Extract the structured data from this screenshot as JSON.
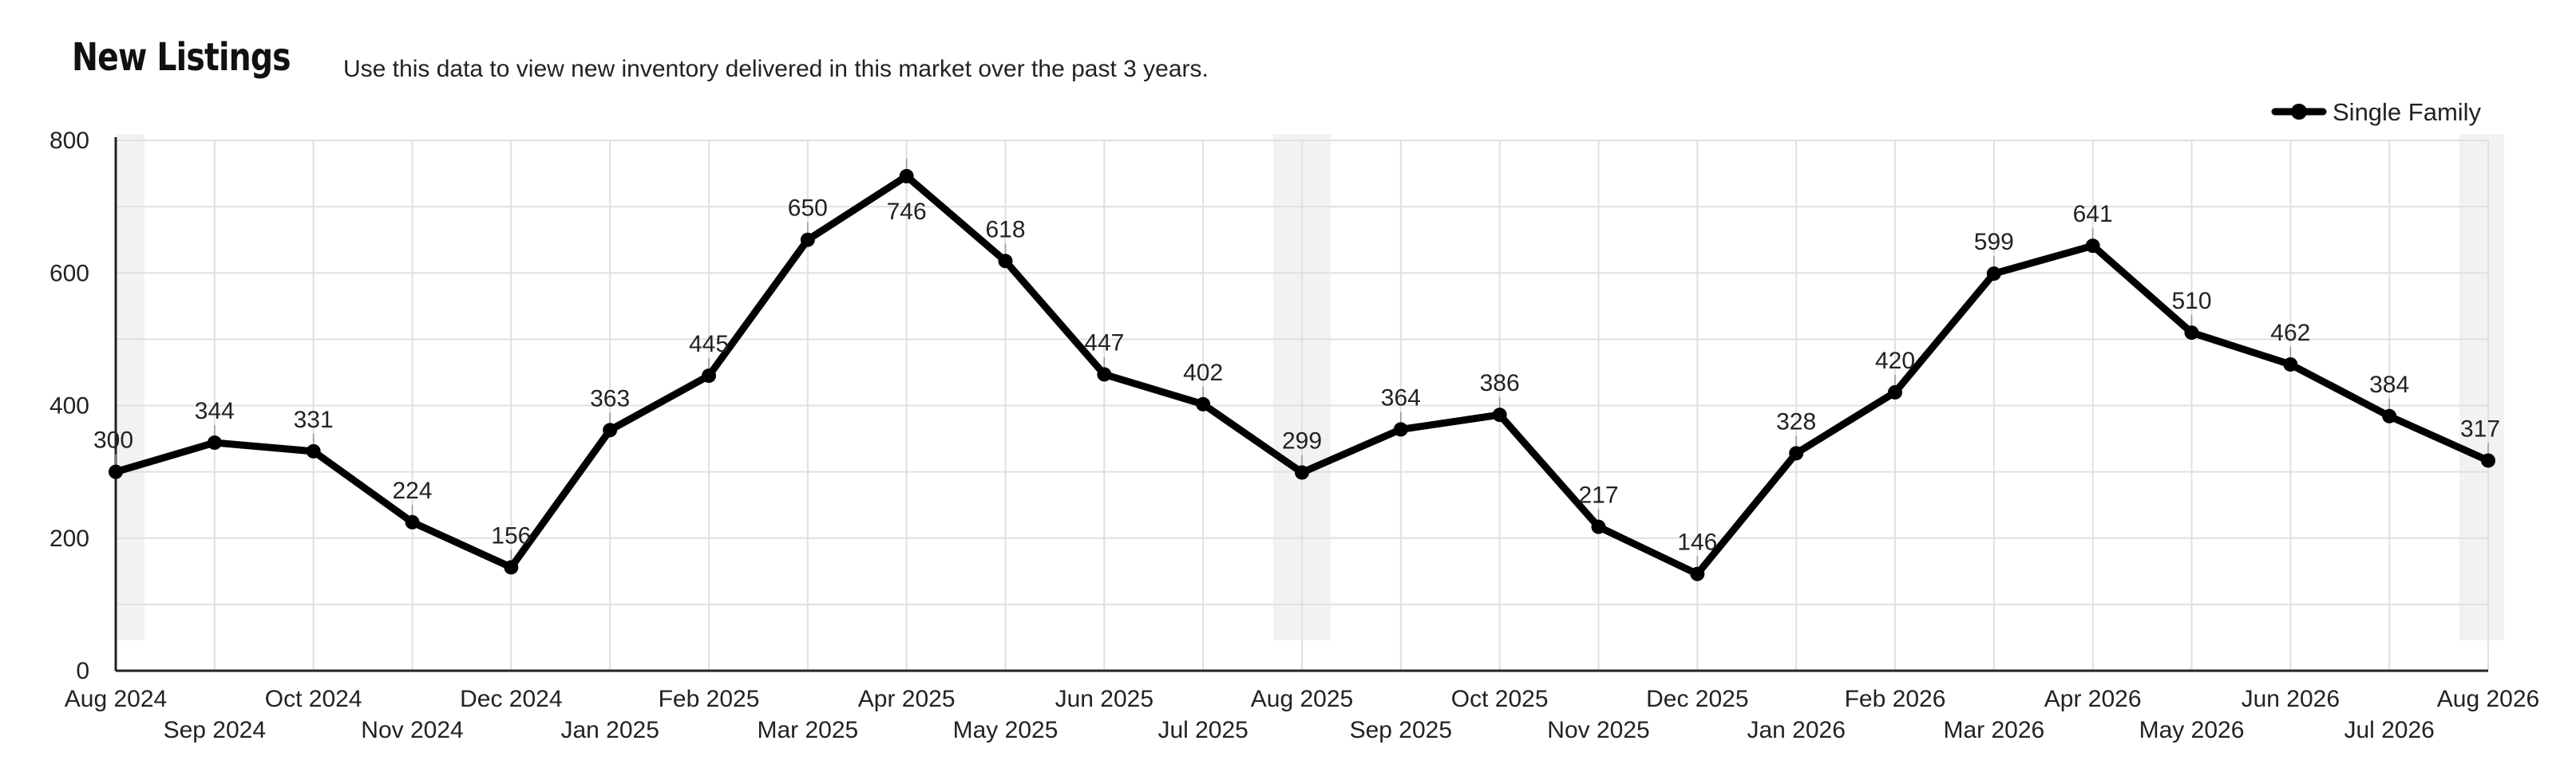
{
  "header": {
    "title": "New Listings",
    "subtitle": "Use this data to view new inventory delivered in this market over the past 3 years."
  },
  "colors": {
    "line": "#000000",
    "grid": "#e0e0e0",
    "shade": "#f2f2f2"
  },
  "chart_data": {
    "type": "line",
    "title": "New Listings",
    "xlabel": "",
    "ylabel": "",
    "ylim": [
      0,
      800
    ],
    "yticks": [
      0,
      200,
      400,
      600,
      800
    ],
    "grid": true,
    "legend": "top-right",
    "categories": [
      "Aug 2024",
      "Sep 2024",
      "Oct 2024",
      "Nov 2024",
      "Dec 2024",
      "Jan 2025",
      "Feb 2025",
      "Mar 2025",
      "Apr 2025",
      "May 2025",
      "Jun 2025",
      "Jul 2025",
      "Aug 2025",
      "Sep 2025",
      "Oct 2025",
      "Nov 2025",
      "Dec 2025",
      "Jan 2026",
      "Feb 2026",
      "Mar 2026",
      "Apr 2026",
      "May 2026",
      "Jun 2026",
      "Jul 2026",
      "Aug 2026"
    ],
    "series": [
      {
        "name": "Single Family",
        "values": [
          300,
          344,
          331,
          224,
          156,
          363,
          445,
          650,
          746,
          618,
          447,
          402,
          299,
          364,
          386,
          217,
          146,
          328,
          420,
          599,
          641,
          510,
          462,
          384,
          317
        ]
      }
    ],
    "highlighted_months": [
      "Aug 2024",
      "Aug 2025",
      "Aug 2026"
    ]
  }
}
